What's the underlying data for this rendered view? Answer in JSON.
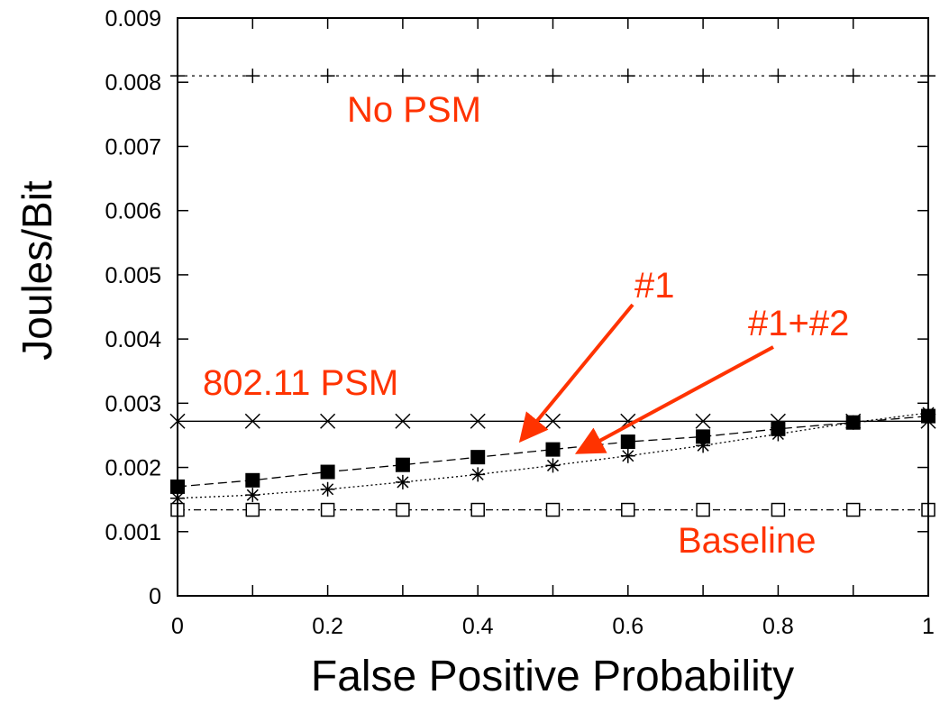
{
  "chart_data": {
    "type": "line",
    "title": "",
    "xlabel": "False Positive Probability",
    "ylabel": "Joules/Bit",
    "xlim": [
      0,
      1
    ],
    "ylim": [
      0,
      0.009
    ],
    "x_ticks": [
      "0",
      "0.2",
      "0.4",
      "0.6",
      "0.8",
      "1"
    ],
    "y_ticks": [
      "0",
      "0.001",
      "0.002",
      "0.003",
      "0.004",
      "0.005",
      "0.006",
      "0.007",
      "0.008",
      "0.009"
    ],
    "grid": false,
    "x": [
      0,
      0.1,
      0.2,
      0.3,
      0.4,
      0.5,
      0.6,
      0.7,
      0.8,
      0.9,
      1.0
    ],
    "series": [
      {
        "key": "no_psm",
        "marker": "plus",
        "dash": "3,5",
        "color": "#000000",
        "values": [
          0.0081,
          0.0081,
          0.0081,
          0.0081,
          0.0081,
          0.0081,
          0.0081,
          0.0081,
          0.0081,
          0.0081,
          0.0081
        ]
      },
      {
        "key": "psm",
        "marker": "cross",
        "dash": "",
        "color": "#000000",
        "values": [
          0.00272,
          0.00272,
          0.00272,
          0.00272,
          0.00272,
          0.00272,
          0.00272,
          0.00272,
          0.00272,
          0.00272,
          0.00272
        ]
      },
      {
        "key": "opt1",
        "marker": "filled-square",
        "dash": "10,5",
        "color": "#000000",
        "values": [
          0.0017,
          0.0018,
          0.00193,
          0.00204,
          0.00216,
          0.00228,
          0.0024,
          0.00248,
          0.0026,
          0.0027,
          0.0028
        ]
      },
      {
        "key": "opt12",
        "marker": "star",
        "dash": "2,3",
        "color": "#000000",
        "values": [
          0.00152,
          0.00157,
          0.00166,
          0.00177,
          0.00189,
          0.00203,
          0.00218,
          0.00234,
          0.00252,
          0.0027,
          0.00285
        ]
      },
      {
        "key": "baseline",
        "marker": "open-square",
        "dash": "8,4,2,4",
        "color": "#000000",
        "values": [
          0.00134,
          0.00134,
          0.00134,
          0.00134,
          0.00134,
          0.00134,
          0.00134,
          0.00134,
          0.00134,
          0.00134,
          0.00134
        ]
      }
    ],
    "annotations": [
      {
        "name": "annotation-no-psm",
        "text": "No PSM"
      },
      {
        "name": "annotation-802-psm",
        "text": "802.11 PSM"
      },
      {
        "name": "annotation-1",
        "text": "#1"
      },
      {
        "name": "annotation-1-2",
        "text": "#1+#2"
      },
      {
        "name": "annotation-baseline",
        "text": "Baseline"
      }
    ],
    "annotation_color": "#ff3300"
  }
}
